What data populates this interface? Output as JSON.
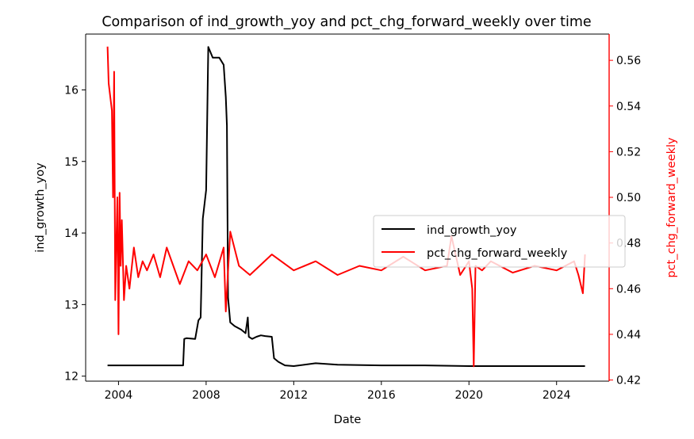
{
  "chart_data": {
    "type": "line",
    "title": "Comparison of ind_growth_yoy and pct_chg_forward_weekly over time",
    "xlabel": "Date",
    "ylabel_left": "ind_growth_yoy",
    "ylabel_right": "pct_chg_forward_weekly",
    "x_ticks": [
      "2004",
      "2008",
      "2012",
      "2016",
      "2020",
      "2024"
    ],
    "x_tick_values": [
      2004,
      2008,
      2012,
      2016,
      2020,
      2024
    ],
    "xlim": [
      2002.5,
      2026.4
    ],
    "ylim_left": [
      11.93,
      16.78
    ],
    "y_ticks_left": [
      12,
      13,
      14,
      15,
      16
    ],
    "ylim_right": [
      0.4195,
      0.5715
    ],
    "y_ticks_right": [
      0.42,
      0.44,
      0.46,
      0.48,
      0.5,
      0.52,
      0.54,
      0.56
    ],
    "legend_position": "center-right",
    "grid": false,
    "series": [
      {
        "name": "ind_growth_yoy",
        "axis": "left",
        "color": "#000000",
        "x": [
          2003.5,
          2006.95,
          2007.0,
          2007.1,
          2007.5,
          2007.65,
          2007.75,
          2007.85,
          2008.0,
          2008.1,
          2008.3,
          2008.6,
          2008.8,
          2008.9,
          2008.95,
          2009.0,
          2009.1,
          2009.3,
          2009.6,
          2009.8,
          2009.9,
          2009.95,
          2010.1,
          2010.3,
          2010.5,
          2010.7,
          2011.0,
          2011.1,
          2011.3,
          2011.6,
          2012.0,
          2013.0,
          2014.0,
          2016.0,
          2018.0,
          2020.0,
          2022.0,
          2025.3
        ],
        "y": [
          12.15,
          12.15,
          12.52,
          12.53,
          12.52,
          12.78,
          12.82,
          14.2,
          14.6,
          16.6,
          16.45,
          16.45,
          16.35,
          15.9,
          15.5,
          13.1,
          12.75,
          12.7,
          12.65,
          12.6,
          12.82,
          12.55,
          12.52,
          12.55,
          12.57,
          12.56,
          12.55,
          12.25,
          12.2,
          12.15,
          12.14,
          12.18,
          12.16,
          12.15,
          12.15,
          12.14,
          12.14,
          12.14
        ]
      },
      {
        "name": "pct_chg_forward_weekly",
        "axis": "right",
        "color": "#ff0000",
        "x": [
          2003.5,
          2003.55,
          2003.7,
          2003.75,
          2003.8,
          2003.85,
          2003.9,
          2003.95,
          2004.0,
          2004.05,
          2004.1,
          2004.15,
          2004.25,
          2004.35,
          2004.5,
          2004.7,
          2004.9,
          2005.1,
          2005.3,
          2005.6,
          2005.9,
          2006.2,
          2006.5,
          2006.8,
          2007.2,
          2007.6,
          2008.0,
          2008.4,
          2008.8,
          2008.9,
          2009.1,
          2009.5,
          2010.0,
          2011.0,
          2012.0,
          2013.0,
          2014.0,
          2015.0,
          2016.0,
          2017.0,
          2018.0,
          2019.0,
          2019.2,
          2019.6,
          2020.0,
          2020.15,
          2020.22,
          2020.3,
          2020.6,
          2021.0,
          2022.0,
          2023.0,
          2024.0,
          2024.8,
          2025.0,
          2025.2,
          2025.3
        ],
        "y": [
          0.566,
          0.55,
          0.538,
          0.5,
          0.555,
          0.455,
          0.48,
          0.5,
          0.44,
          0.502,
          0.47,
          0.49,
          0.455,
          0.47,
          0.46,
          0.478,
          0.465,
          0.472,
          0.468,
          0.475,
          0.465,
          0.478,
          0.47,
          0.462,
          0.472,
          0.468,
          0.475,
          0.465,
          0.478,
          0.45,
          0.485,
          0.47,
          0.466,
          0.475,
          0.468,
          0.472,
          0.466,
          0.47,
          0.468,
          0.474,
          0.468,
          0.47,
          0.483,
          0.466,
          0.472,
          0.46,
          0.426,
          0.47,
          0.468,
          0.472,
          0.467,
          0.47,
          0.468,
          0.472,
          0.466,
          0.458,
          0.475
        ]
      }
    ]
  }
}
